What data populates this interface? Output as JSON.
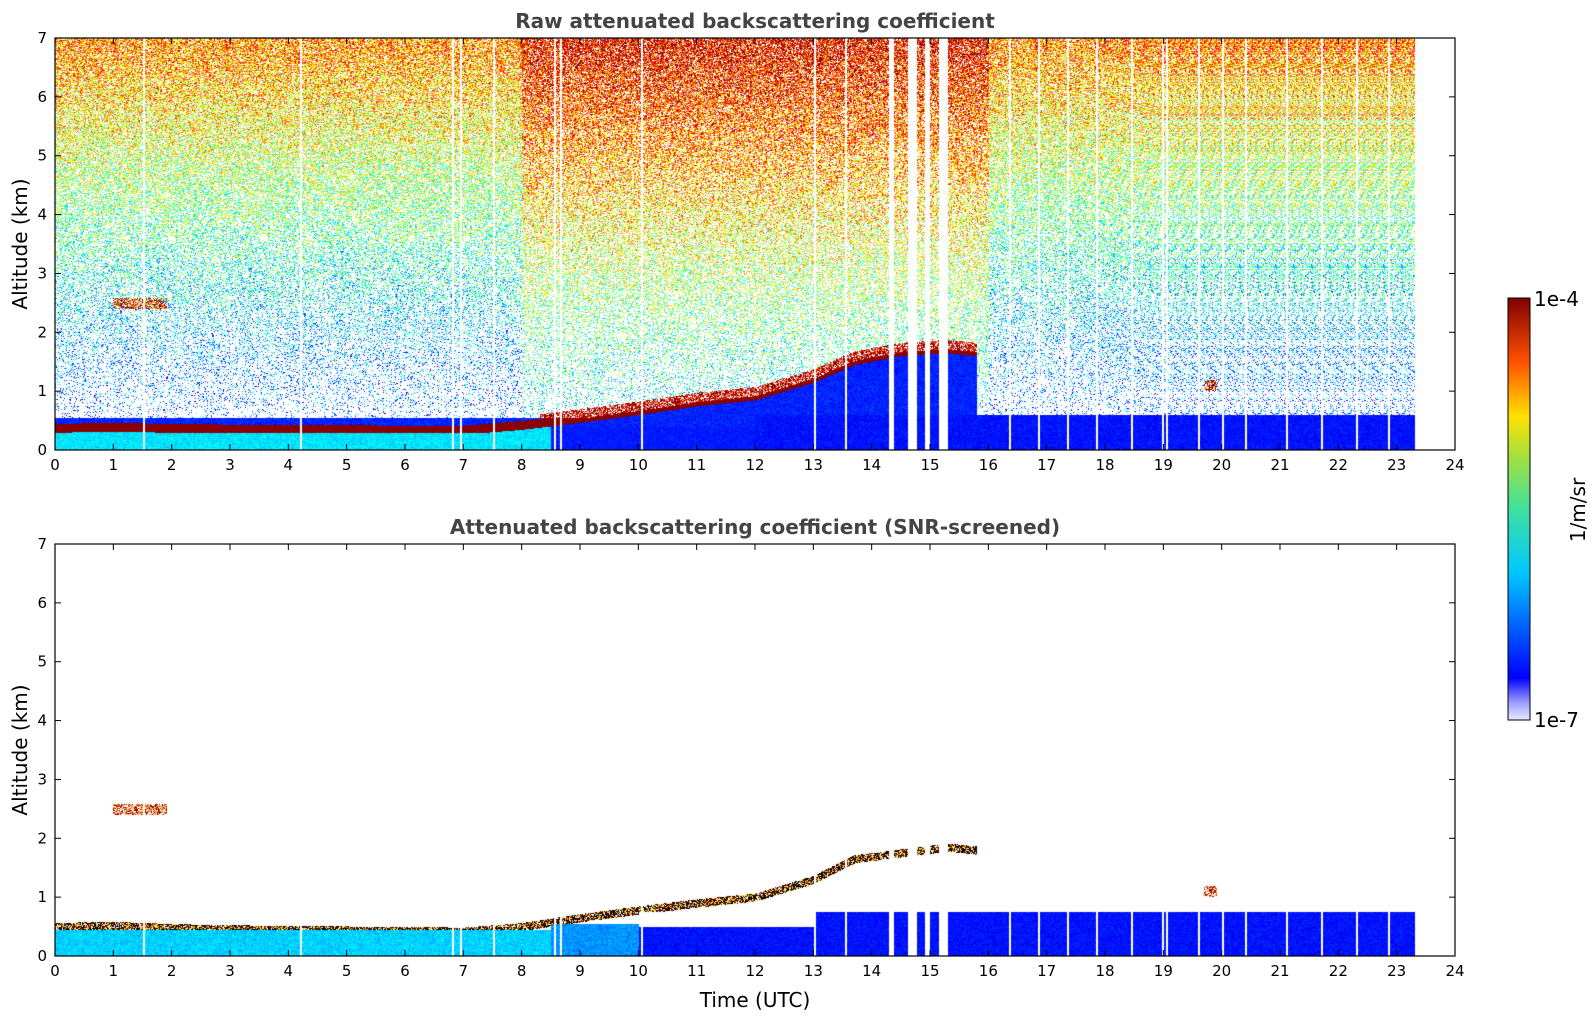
{
  "chart_data": [
    {
      "type": "heatmap",
      "title": "Raw attenuated backscattering coefficient",
      "xlabel": "",
      "ylabel": "Altitude (km)",
      "xlim": [
        0,
        24
      ],
      "ylim": [
        0,
        7
      ],
      "x_ticks": [
        "0",
        "1",
        "2",
        "3",
        "4",
        "5",
        "6",
        "7",
        "8",
        "9",
        "10",
        "11",
        "12",
        "13",
        "14",
        "15",
        "16",
        "17",
        "18",
        "19",
        "20",
        "21",
        "22",
        "23",
        "24"
      ],
      "y_ticks": [
        "0",
        "1",
        "2",
        "3",
        "4",
        "5",
        "6",
        "7"
      ],
      "boundary_layer_top_km": [
        [
          0,
          0.45
        ],
        [
          1,
          0.47
        ],
        [
          2,
          0.45
        ],
        [
          3,
          0.44
        ],
        [
          4,
          0.44
        ],
        [
          5,
          0.43
        ],
        [
          6,
          0.42
        ],
        [
          7,
          0.42
        ],
        [
          8,
          0.5
        ],
        [
          9,
          0.62
        ],
        [
          10,
          0.75
        ],
        [
          11,
          0.9
        ],
        [
          12,
          1.0
        ],
        [
          13,
          1.3
        ],
        [
          13.7,
          1.6
        ],
        [
          14.5,
          1.75
        ],
        [
          15.3,
          1.8
        ],
        [
          15.8,
          1.75
        ]
      ],
      "aerosol_layers": [
        {
          "x_start": 1.0,
          "x_end": 1.9,
          "altitude_km": 2.5
        },
        {
          "x_start": 19.7,
          "x_end": 19.9,
          "altitude_km": 1.1
        }
      ],
      "data_gaps_hours": [
        1.5,
        4.2,
        6.8,
        6.95,
        7.5,
        8.55,
        8.65,
        10.05,
        13.02,
        13.55,
        14.3,
        14.63,
        14.7,
        14.92,
        15.15,
        15.22,
        16.35,
        16.85,
        17.35,
        17.85,
        18.45,
        18.98,
        19.05,
        19.6,
        20.0,
        20.4,
        21.1,
        21.7,
        22.3,
        22.85,
        23.5,
        23.8
      ]
    },
    {
      "type": "heatmap",
      "title": "Attenuated backscattering coefficient (SNR-screened)",
      "xlabel": "Time (UTC)",
      "ylabel": "Altitude (km)",
      "xlim": [
        0,
        24
      ],
      "ylim": [
        0,
        7
      ],
      "x_ticks": [
        "0",
        "1",
        "2",
        "3",
        "4",
        "5",
        "6",
        "7",
        "8",
        "9",
        "10",
        "11",
        "12",
        "13",
        "14",
        "15",
        "16",
        "17",
        "18",
        "19",
        "20",
        "21",
        "22",
        "23",
        "24"
      ],
      "y_ticks": [
        "0",
        "1",
        "2",
        "3",
        "4",
        "5",
        "6",
        "7"
      ],
      "boundary_layer_top_km": [
        [
          0,
          0.5
        ],
        [
          1,
          0.52
        ],
        [
          2,
          0.48
        ],
        [
          3,
          0.46
        ],
        [
          4,
          0.45
        ],
        [
          5,
          0.44
        ],
        [
          6,
          0.43
        ],
        [
          7,
          0.42
        ],
        [
          8,
          0.5
        ],
        [
          9,
          0.65
        ],
        [
          10,
          0.78
        ],
        [
          11,
          0.9
        ],
        [
          12,
          1.0
        ],
        [
          13,
          1.3
        ],
        [
          13.7,
          1.65
        ],
        [
          14.5,
          1.75
        ],
        [
          15.3,
          1.85
        ],
        [
          15.8,
          1.8
        ]
      ],
      "residual_layer_top_km": 0.75,
      "aerosol_layers": [
        {
          "x_start": 1.0,
          "x_end": 1.9,
          "altitude_km": 2.5
        },
        {
          "x_start": 19.7,
          "x_end": 19.9,
          "altitude_km": 1.1
        }
      ]
    }
  ],
  "colorbar": {
    "label": "1/m/sr",
    "max_label": "1e-4",
    "min_label": "1e-7",
    "colormap": "jet"
  }
}
